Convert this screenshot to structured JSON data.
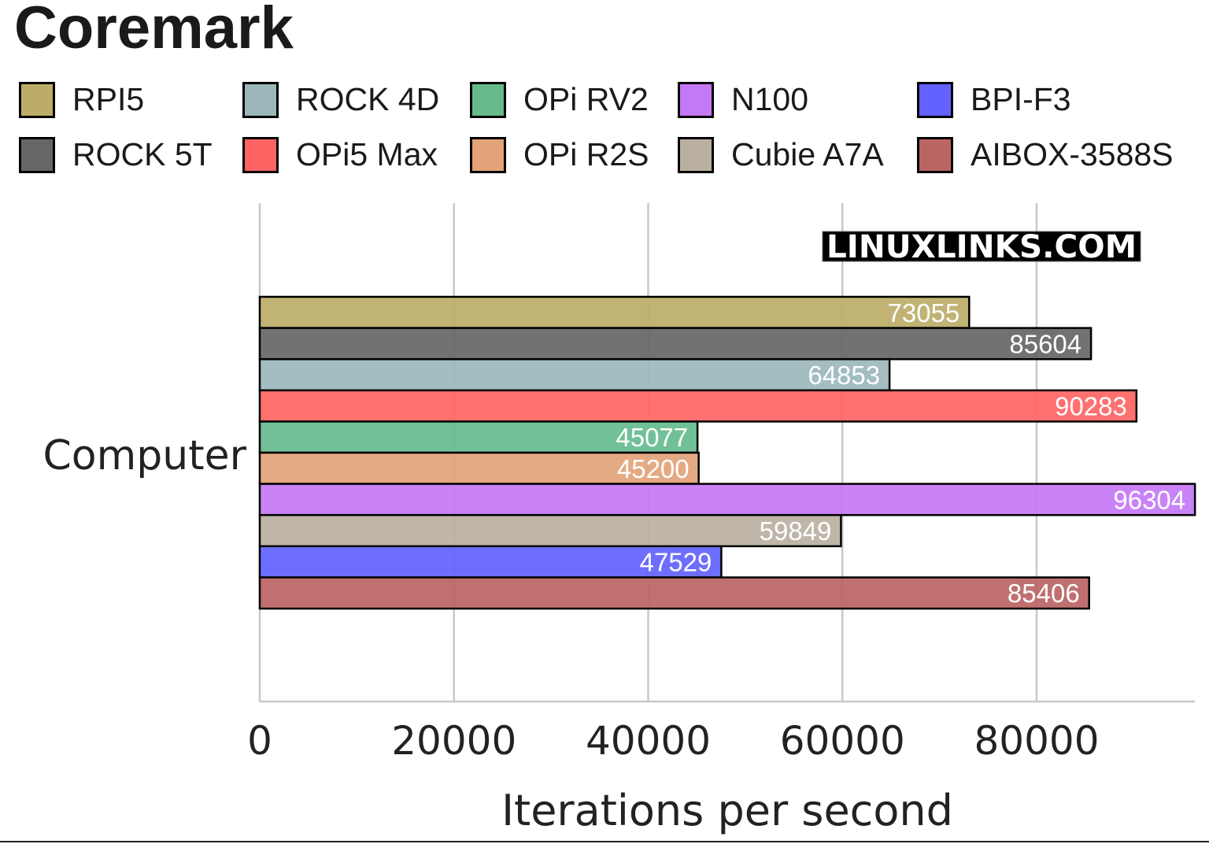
{
  "chart_data": {
    "type": "bar",
    "orientation": "horizontal",
    "title": "Coremark",
    "xlabel": "Iterations per second",
    "ylabel": "",
    "categories": [
      "Computer"
    ],
    "xlim": [
      0,
      96304
    ],
    "xticks": [
      0,
      20000,
      40000,
      60000,
      80000
    ],
    "grid": true,
    "legend_position": "top",
    "watermark": "LINUXLINKS.COM",
    "series": [
      {
        "name": "RPI5",
        "value": 73055,
        "color": "#bbad68"
      },
      {
        "name": "ROCK 5T",
        "value": 85604,
        "color": "#666666"
      },
      {
        "name": "ROCK 4D",
        "value": 64853,
        "color": "#9bb7bb"
      },
      {
        "name": "OPi5 Max",
        "value": 90283,
        "color": "#ff6464"
      },
      {
        "name": "OPi RV2",
        "value": 45077,
        "color": "#66bb8e"
      },
      {
        "name": "OPi R2S",
        "value": 45200,
        "color": "#e2a378"
      },
      {
        "name": "N100",
        "value": 96304,
        "color": "#c478f5"
      },
      {
        "name": "Cubie A7A",
        "value": 59849,
        "color": "#bab0a2"
      },
      {
        "name": "BPI-F3",
        "value": 47529,
        "color": "#6262fe"
      },
      {
        "name": "AIBOX-3588S",
        "value": 85406,
        "color": "#bb6464"
      }
    ]
  }
}
